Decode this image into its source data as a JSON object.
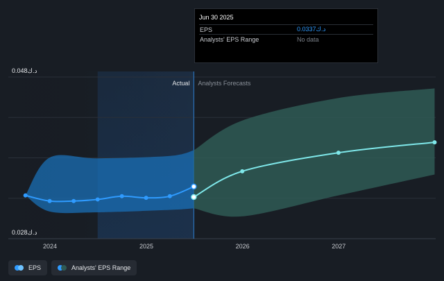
{
  "chart_data": {
    "type": "line",
    "y_unit": "د.ك",
    "ylim": [
      0.028,
      0.048
    ],
    "y_labels": [
      "0.048د.ك",
      "0.028د.ك"
    ],
    "x_ticks": [
      "2024",
      "2025",
      "2026",
      "2027"
    ],
    "divider_date": "2025-06-30",
    "region_labels": {
      "actual": "Actual",
      "forecast": "Analysts Forecasts"
    },
    "series": [
      {
        "name": "EPS",
        "color": "#2f9bff",
        "points": [
          {
            "x": "2023-09-30",
            "y": 0.0326
          },
          {
            "x": "2023-12-31",
            "y": 0.0319
          },
          {
            "x": "2024-03-31",
            "y": 0.0319
          },
          {
            "x": "2024-06-30",
            "y": 0.0321
          },
          {
            "x": "2024-09-30",
            "y": 0.0325
          },
          {
            "x": "2024-12-31",
            "y": 0.0323
          },
          {
            "x": "2025-03-31",
            "y": 0.0325
          },
          {
            "x": "2025-06-30",
            "y": 0.0337
          }
        ]
      },
      {
        "name": "EPS Forecast",
        "color": "#7fe8ea",
        "points": [
          {
            "x": "2025-06-30",
            "y": 0.0324
          },
          {
            "x": "2025-12-31",
            "y": 0.0356
          },
          {
            "x": "2026-12-31",
            "y": 0.0379
          },
          {
            "x": "2027-12-31",
            "y": 0.0392
          }
        ]
      }
    ],
    "range_actual": {
      "color": "#1a6fb5",
      "upper": [
        {
          "x": "2023-09-30",
          "y": 0.0326
        },
        {
          "x": "2023-12-31",
          "y": 0.0373
        },
        {
          "x": "2024-06-30",
          "y": 0.0372
        },
        {
          "x": "2025-03-31",
          "y": 0.0375
        },
        {
          "x": "2025-06-30",
          "y": 0.0382
        }
      ],
      "lower": [
        {
          "x": "2023-09-30",
          "y": 0.0326
        },
        {
          "x": "2023-12-31",
          "y": 0.0306
        },
        {
          "x": "2024-06-30",
          "y": 0.0305
        },
        {
          "x": "2025-03-31",
          "y": 0.0308
        },
        {
          "x": "2025-06-30",
          "y": 0.031
        }
      ]
    },
    "range_forecast": {
      "color": "#2f5a55",
      "upper": [
        {
          "x": "2025-06-30",
          "y": 0.0382
        },
        {
          "x": "2025-12-31",
          "y": 0.0419
        },
        {
          "x": "2026-12-31",
          "y": 0.0447
        },
        {
          "x": "2027-12-31",
          "y": 0.0459
        }
      ],
      "lower": [
        {
          "x": "2025-06-30",
          "y": 0.031
        },
        {
          "x": "2025-12-31",
          "y": 0.03
        },
        {
          "x": "2026-12-31",
          "y": 0.0326
        },
        {
          "x": "2027-12-31",
          "y": 0.0352
        }
      ]
    }
  },
  "tooltip": {
    "date": "Jun 30 2025",
    "rows": [
      {
        "label": "EPS",
        "value": "0.0337د.ك"
      },
      {
        "label": "Analysts' EPS Range",
        "value": "No data"
      }
    ]
  },
  "legend": {
    "items": [
      {
        "label": "EPS",
        "colors": [
          "#2f9bff",
          "#6fc3ff"
        ]
      },
      {
        "label": "Analysts' EPS Range",
        "colors": [
          "#2f9bff",
          "#2f5a55"
        ]
      }
    ]
  }
}
